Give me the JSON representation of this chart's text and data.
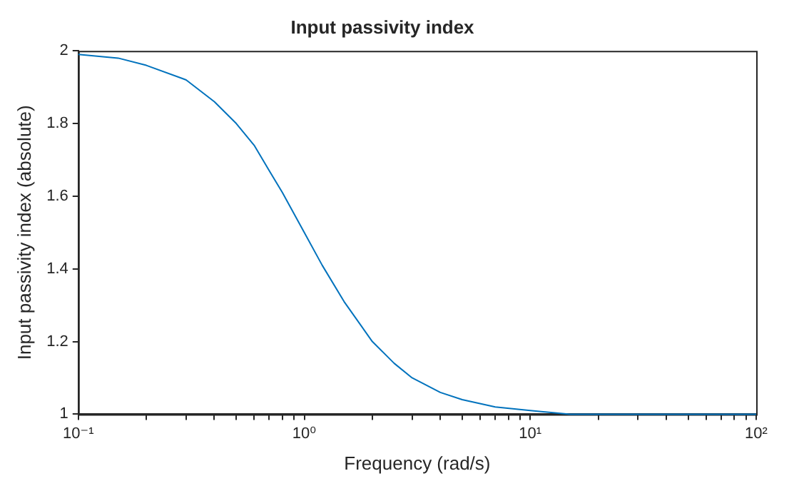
{
  "chart_data": {
    "type": "line",
    "title": "Input passivity index",
    "xlabel": "Frequency (rad/s)",
    "ylabel": "Input passivity index (absolute)",
    "x": [
      0.1,
      0.15,
      0.2,
      0.3,
      0.4,
      0.5,
      0.6,
      0.7,
      0.8,
      1,
      1.2,
      1.5,
      2,
      2.5,
      3,
      4,
      5,
      7,
      10,
      15,
      20,
      30,
      50,
      100
    ],
    "series": [
      {
        "color": "#0072bd",
        "values": [
          1.99,
          1.98,
          1.96,
          1.92,
          1.86,
          1.8,
          1.74,
          1.67,
          1.61,
          1.5,
          1.41,
          1.31,
          1.2,
          1.14,
          1.1,
          1.06,
          1.04,
          1.02,
          1.01,
          1.0,
          1.0,
          1.0,
          1.0,
          1.0
        ]
      }
    ],
    "log": "x",
    "xlim": [
      0.1,
      100
    ],
    "xticks": [
      {
        "value": 0.1,
        "label": "10⁻¹"
      },
      {
        "value": 0.2,
        "label": null
      },
      {
        "value": 0.3,
        "label": null
      },
      {
        "value": 0.4,
        "label": null
      },
      {
        "value": 0.5,
        "label": null
      },
      {
        "value": 0.6,
        "label": null
      },
      {
        "value": 0.7,
        "label": null
      },
      {
        "value": 0.8,
        "label": null
      },
      {
        "value": 0.9,
        "label": null
      },
      {
        "value": 1,
        "label": "10⁰"
      },
      {
        "value": 2,
        "label": null
      },
      {
        "value": 3,
        "label": null
      },
      {
        "value": 4,
        "label": null
      },
      {
        "value": 5,
        "label": null
      },
      {
        "value": 6,
        "label": null
      },
      {
        "value": 7,
        "label": null
      },
      {
        "value": 8,
        "label": null
      },
      {
        "value": 9,
        "label": null
      },
      {
        "value": 10,
        "label": "10¹"
      },
      {
        "value": 20,
        "label": null
      },
      {
        "value": 30,
        "label": null
      },
      {
        "value": 40,
        "label": null
      },
      {
        "value": 50,
        "label": null
      },
      {
        "value": 60,
        "label": null
      },
      {
        "value": 70,
        "label": null
      },
      {
        "value": 80,
        "label": null
      },
      {
        "value": 90,
        "label": null
      },
      {
        "value": 100,
        "label": "10²"
      }
    ],
    "ylim": [
      1,
      2
    ],
    "yticks": [
      1,
      1.2,
      1.4,
      1.6,
      1.8,
      2
    ],
    "grid": false,
    "legend": false,
    "marker": "none",
    "line_style": "solid"
  }
}
